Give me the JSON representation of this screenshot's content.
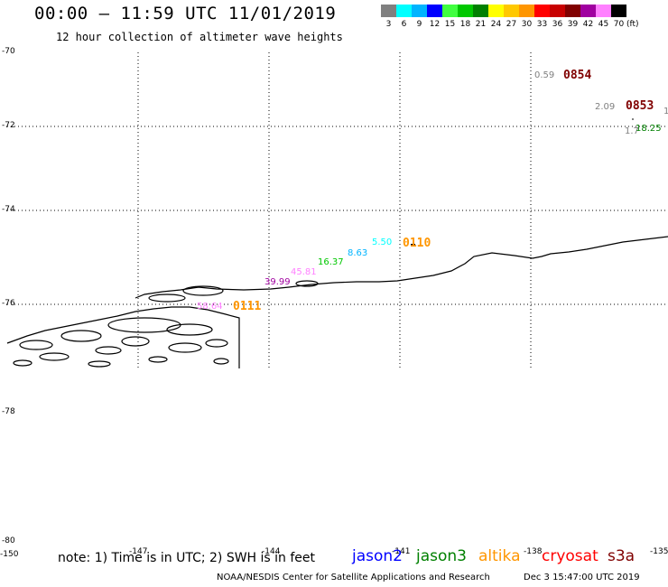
{
  "title": "00:00 – 11:59 UTC 11/01/2019",
  "subtitle": "12 hour collection of altimeter wave heights",
  "legend": {
    "values": [
      "3",
      "6",
      "9",
      "12",
      "15",
      "18",
      "21",
      "24",
      "27",
      "30",
      "33",
      "36",
      "39",
      "42",
      "45",
      "70"
    ],
    "unit": "(ft)",
    "colors": [
      "#808080",
      "#00ffff",
      "#00b4ff",
      "#0000ff",
      "#40ff40",
      "#00c800",
      "#008000",
      "#ffff00",
      "#ffc800",
      "#ff9600",
      "#ff0000",
      "#c80000",
      "#800000",
      "#a000a0",
      "#ff80ff",
      "#000000"
    ]
  },
  "axes": {
    "y_labels": [
      "-70",
      "-72",
      "-74",
      "-76",
      "-78",
      "-78",
      "-80"
    ],
    "x_labels": [
      "-150",
      "-147",
      "-144",
      "-141",
      "-138",
      "-135"
    ]
  },
  "annotations": {
    "time_labels": [
      {
        "text": "0854",
        "color": "#800000"
      },
      {
        "text": "0853",
        "color": "#800000"
      },
      {
        "text": "0110",
        "color": "#ff9600"
      },
      {
        "text": "0111",
        "color": "#ff9600"
      }
    ],
    "wave_heights": [
      {
        "text": "0.59",
        "color": "#808080"
      },
      {
        "text": "2.09",
        "color": "#808080"
      },
      {
        "text": "1",
        "color": "#808080"
      },
      {
        "text": "1.7",
        "color": "#808080"
      },
      {
        "text": "18.25",
        "color": "#008000"
      },
      {
        "text": "5.50",
        "color": "#00ffff"
      },
      {
        "text": "8.63",
        "color": "#00b4ff"
      },
      {
        "text": "16.37",
        "color": "#00c800"
      },
      {
        "text": "45.81",
        "color": "#ff80ff"
      },
      {
        "text": "39.99",
        "color": "#a000a0"
      },
      {
        "text": "58.64",
        "color": "#ff80ff"
      }
    ]
  },
  "note": "note: 1) Time is in UTC; 2) SWH is in feet",
  "satellites": [
    {
      "name": "jason2",
      "color": "#0000ff"
    },
    {
      "name": "jason3",
      "color": "#008000"
    },
    {
      "name": "altika",
      "color": "#ff9600"
    },
    {
      "name": "cryosat",
      "color": "#ff0000"
    },
    {
      "name": "s3a",
      "color": "#800000"
    }
  ],
  "footer": {
    "credit": "NOAA/NESDIS Center for Satellite Applications and Research",
    "timestamp": "Dec  3 15:47:00 UTC 2019"
  }
}
